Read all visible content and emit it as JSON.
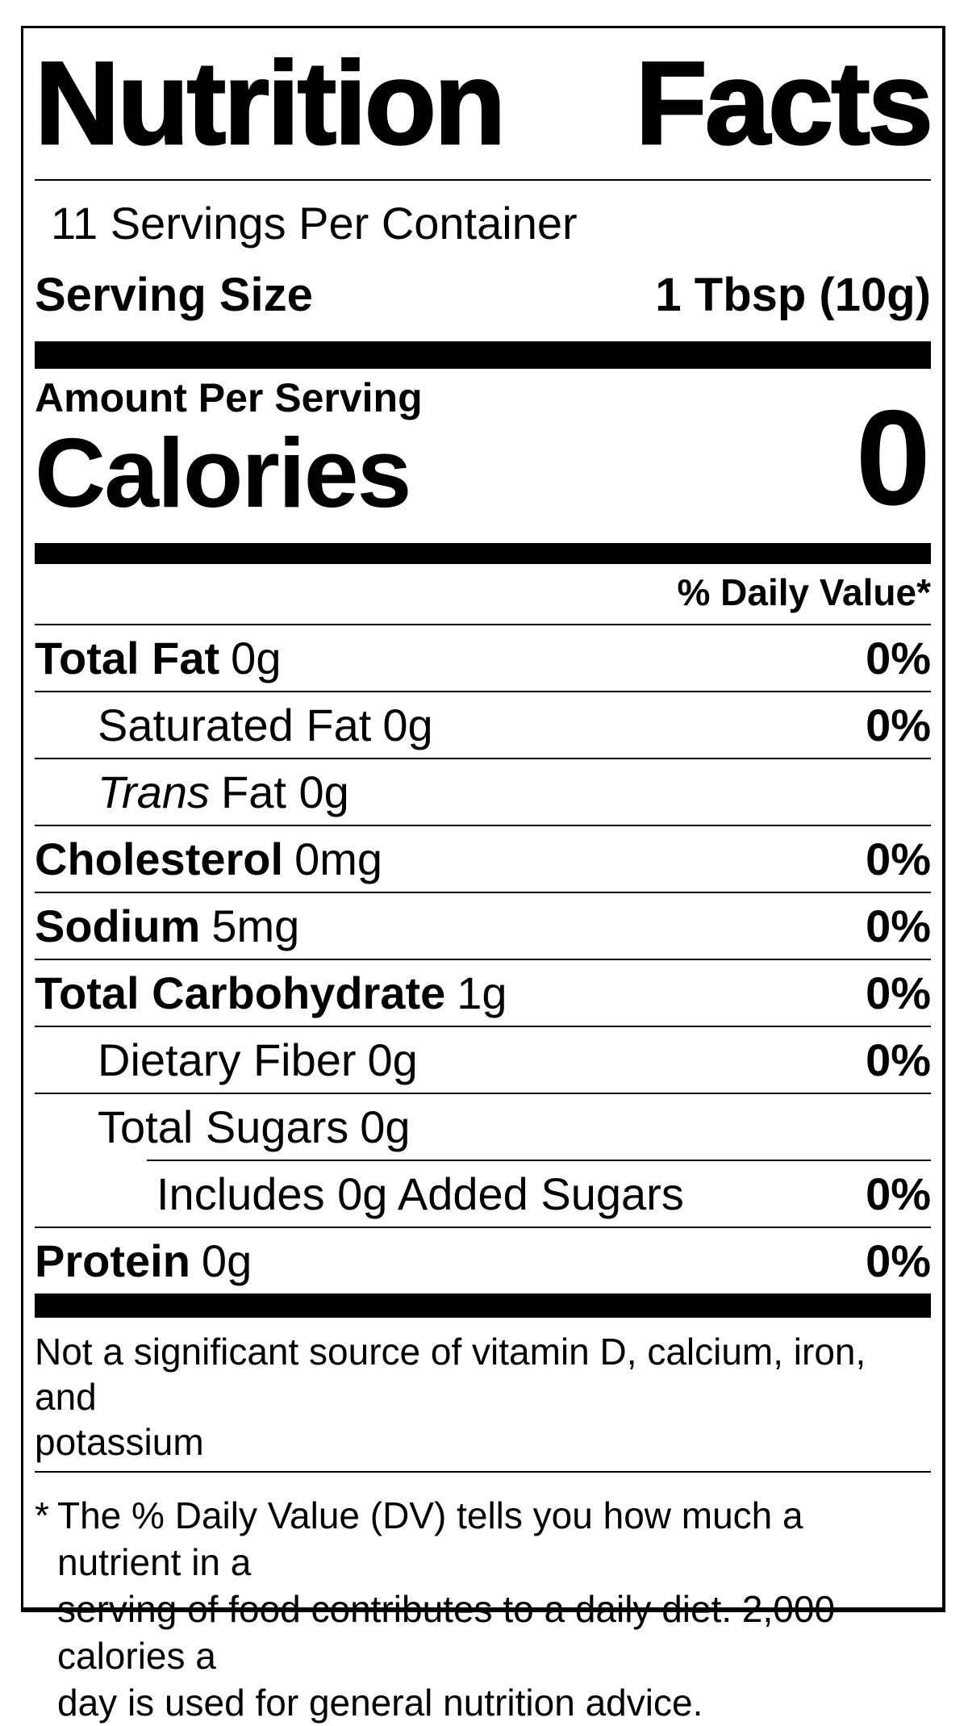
{
  "label": {
    "title": "Nutrition Facts",
    "servings_per_container": "11 Servings Per Container",
    "serving_size_label": "Serving Size",
    "serving_size_value": "1 Tbsp (10g)",
    "amount_per_serving": "Amount Per Serving",
    "calories_label": "Calories",
    "calories_value": "0",
    "daily_value_header": "% Daily Value*",
    "rows": [
      {
        "name": "Total Fat",
        "amount": "0g",
        "dv": "0%"
      },
      {
        "name": "Saturated Fat",
        "amount": "0g",
        "dv": "0%"
      },
      {
        "name": "Trans",
        "amount": "Fat 0g",
        "dv": ""
      },
      {
        "name": "Cholesterol",
        "amount": "0mg",
        "dv": "0%"
      },
      {
        "name": "Sodium",
        "amount": "5mg",
        "dv": "0%"
      },
      {
        "name": "Total Carbohydrate",
        "amount": "1g",
        "dv": "0%"
      },
      {
        "name": "Dietary Fiber",
        "amount": "0g",
        "dv": "0%"
      },
      {
        "name": "Total Sugars",
        "amount": "0g",
        "dv": ""
      },
      {
        "name": "Includes 0g Added Sugars",
        "dv": "0%"
      },
      {
        "name": "Protein",
        "amount": "0g",
        "dv": "0%"
      }
    ],
    "not_significant_lines": [
      "Not a significant source of vitamin D, calcium, iron, and",
      "potassium"
    ],
    "footnote_marker": "*",
    "footnote_lines": [
      "The % Daily Value (DV) tells you how much a nutrient in a",
      "serving of food contributes to a daily diet. 2,000 calories a",
      "day is used for general nutrition advice."
    ],
    "colors": {
      "text": "#000000",
      "background": "#ffffff"
    }
  }
}
